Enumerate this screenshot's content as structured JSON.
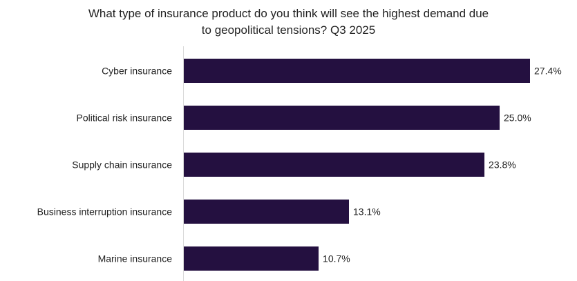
{
  "chart_data": {
    "type": "bar",
    "orientation": "horizontal",
    "title_line1": "What type of insurance product do you think will see the highest demand due",
    "title_line2": "to geopolitical tensions? Q3 2025",
    "categories": [
      "Cyber insurance",
      "Political risk insurance",
      "Supply chain insurance",
      "Business interruption insurance",
      "Marine insurance"
    ],
    "values": [
      27.4,
      25.0,
      23.8,
      13.1,
      10.7
    ],
    "labels": [
      "27.4%",
      "25.0%",
      "23.8%",
      "13.1%",
      "10.7%"
    ],
    "unit": "%",
    "xlim": [
      0,
      27.4
    ],
    "grid": false,
    "bar_color": "#241040",
    "axis_color": "#d9d9d9"
  }
}
